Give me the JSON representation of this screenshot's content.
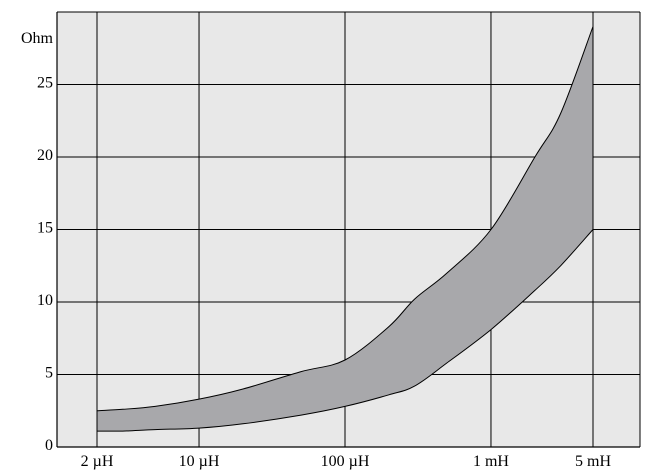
{
  "chart_data": {
    "type": "area",
    "ylabel": "Ohm",
    "x_scale": "log",
    "xlim_H": [
      1e-06,
      0.006
    ],
    "ylim": [
      0,
      30
    ],
    "x_ticks": [
      {
        "value": 2e-06,
        "label": "2 µH"
      },
      {
        "value": 1e-05,
        "label": "10 µH"
      },
      {
        "value": 0.0001,
        "label": "100 µH"
      },
      {
        "value": 0.001,
        "label": "1 mH"
      },
      {
        "value": 0.005,
        "label": "5 mH"
      }
    ],
    "y_ticks": [
      {
        "value": 0,
        "label": "0"
      },
      {
        "value": 5,
        "label": "5"
      },
      {
        "value": 10,
        "label": "10"
      },
      {
        "value": 15,
        "label": "15"
      },
      {
        "value": 20,
        "label": "20"
      },
      {
        "value": 25,
        "label": "25"
      }
    ],
    "grid": true,
    "band": {
      "x": [
        2e-06,
        3e-06,
        5e-06,
        1e-05,
        2e-05,
        5e-05,
        0.0001,
        0.0002,
        0.0003,
        0.0005,
        0.001,
        0.002,
        0.003,
        0.005
      ],
      "upper": [
        2.5,
        2.6,
        2.8,
        3.3,
        4.0,
        5.2,
        6.0,
        8.3,
        10.2,
        12.0,
        15.0,
        20.0,
        23.0,
        29.0
      ],
      "lower": [
        1.1,
        1.1,
        1.2,
        1.3,
        1.6,
        2.2,
        2.8,
        3.6,
        4.2,
        5.8,
        8.1,
        10.8,
        12.5,
        15.0
      ]
    },
    "colors": {
      "background": "#e8e8e8",
      "band_fill": "#a8a8ab",
      "grid": "#000000"
    }
  }
}
